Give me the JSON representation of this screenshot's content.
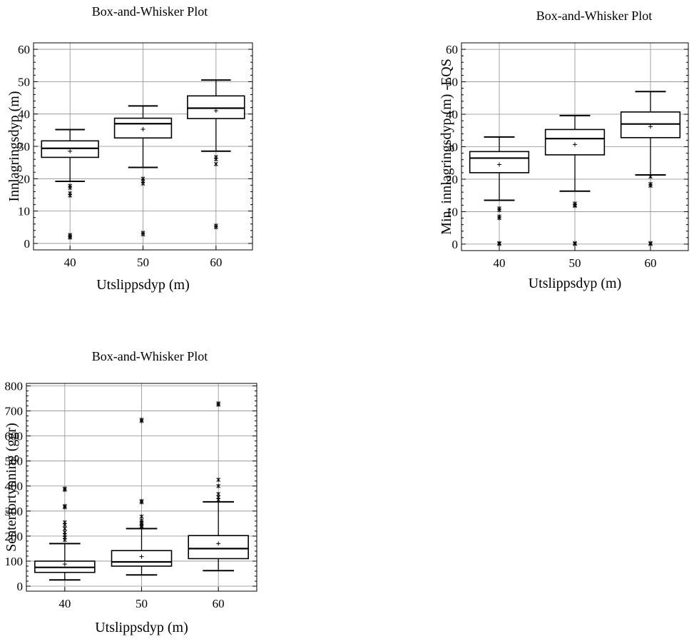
{
  "chart_data": [
    {
      "type": "boxplot",
      "title": "Box-and-Whisker Plot",
      "xlabel": "Utslippsdyp (m)",
      "ylabel": "Innlagringsdyp (m)",
      "categories": [
        "40",
        "50",
        "60"
      ],
      "ylim": [
        -2,
        62
      ],
      "yticks": [
        0,
        10,
        20,
        30,
        40,
        50,
        60
      ],
      "grid": true,
      "boxes": [
        {
          "category": "40",
          "whisker_low": 19.2,
          "q1": 26.6,
          "median": 29.4,
          "q3": 31.7,
          "whisker_high": 35.2,
          "mean": 28.5,
          "outliers": [
            17.8,
            17.2,
            15.5,
            14.8,
            2.6,
            2.2,
            1.8
          ]
        },
        {
          "category": "50",
          "whisker_low": 23.5,
          "q1": 32.6,
          "median": 37.0,
          "q3": 38.7,
          "whisker_high": 42.5,
          "mean": 35.3,
          "outliers": [
            20.0,
            19.2,
            18.5,
            3.3,
            2.8
          ]
        },
        {
          "category": "60",
          "whisker_low": 28.5,
          "q1": 38.6,
          "median": 41.8,
          "q3": 45.6,
          "whisker_high": 50.5,
          "mean": 41.0,
          "outliers": [
            26.7,
            26.0,
            24.5,
            5.5,
            5.0
          ]
        }
      ]
    },
    {
      "type": "boxplot",
      "title": "Box-and-Whisker Plot",
      "xlabel": "Utslippsdyp (m)",
      "ylabel": "Min. innlagringsdyp (m) -EQS",
      "categories": [
        "40",
        "50",
        "60"
      ],
      "ylim": [
        -2,
        62
      ],
      "yticks": [
        0,
        10,
        20,
        30,
        40,
        50,
        60
      ],
      "grid": true,
      "boxes": [
        {
          "category": "40",
          "whisker_low": 13.5,
          "q1": 22.0,
          "median": 26.5,
          "q3": 28.5,
          "whisker_high": 33.0,
          "mean": 24.5,
          "outliers": [
            11.0,
            10.5,
            8.5,
            8.0,
            0.3,
            0.0
          ]
        },
        {
          "category": "50",
          "whisker_low": 16.3,
          "q1": 27.5,
          "median": 32.5,
          "q3": 35.3,
          "whisker_high": 39.6,
          "mean": 30.7,
          "outliers": [
            12.5,
            12.0,
            11.8,
            0.3,
            0.0
          ]
        },
        {
          "category": "60",
          "whisker_low": 21.3,
          "q1": 32.8,
          "median": 37.0,
          "q3": 40.7,
          "whisker_high": 47.0,
          "mean": 36.2,
          "outliers": [
            20.8,
            18.5,
            18.0,
            0.3,
            0.0
          ]
        }
      ]
    },
    {
      "type": "boxplot",
      "title": "Box-and-Whisker Plot",
      "xlabel": "Utslippsdyp (m)",
      "ylabel": "Senterfortynning (ggr)",
      "categories": [
        "40",
        "50",
        "60"
      ],
      "ylim": [
        -20,
        810
      ],
      "yticks": [
        0,
        100,
        200,
        300,
        400,
        500,
        600,
        700,
        800
      ],
      "grid": true,
      "boxes": [
        {
          "category": "40",
          "whisker_low": 25,
          "q1": 55,
          "median": 75,
          "q3": 100,
          "whisker_high": 170,
          "mean": 88,
          "outliers": [
            185,
            195,
            205,
            215,
            230,
            245,
            255,
            315,
            320,
            385,
            390
          ]
        },
        {
          "category": "50",
          "whisker_low": 45,
          "q1": 80,
          "median": 97,
          "q3": 142,
          "whisker_high": 230,
          "mean": 118,
          "outliers": [
            235,
            240,
            250,
            255,
            262,
            278,
            335,
            340,
            660,
            665
          ]
        },
        {
          "category": "60",
          "whisker_low": 62,
          "q1": 110,
          "median": 150,
          "q3": 202,
          "whisker_high": 337,
          "mean": 170,
          "outliers": [
            345,
            355,
            368,
            400,
            425,
            725,
            730
          ]
        }
      ]
    }
  ]
}
